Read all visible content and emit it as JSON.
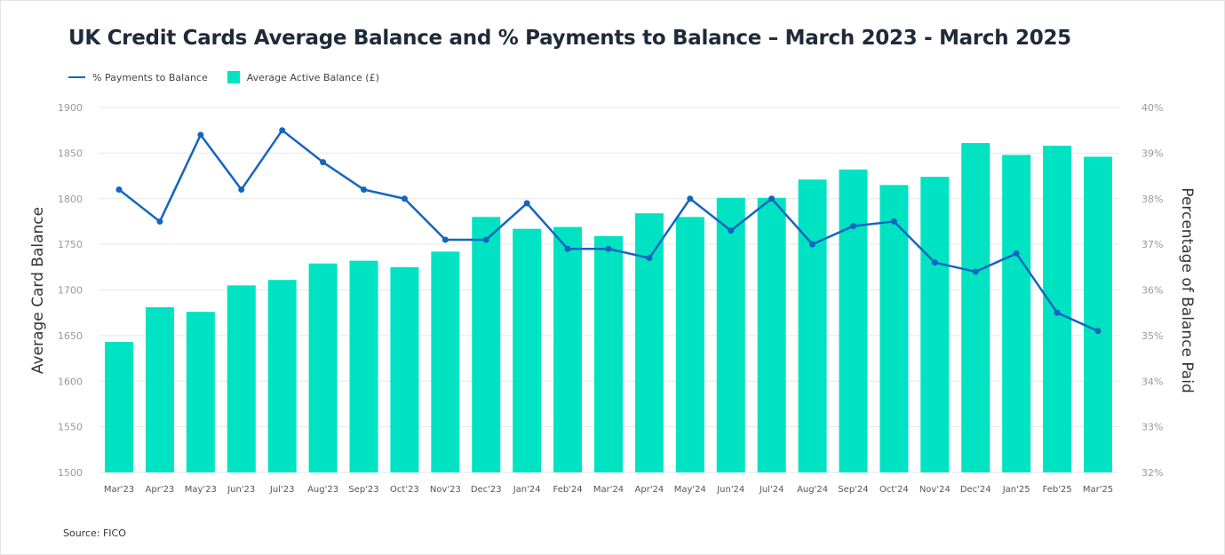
{
  "chart_data": {
    "type": "bar+line",
    "title": "UK Credit Cards Average Balance and % Payments to Balance – March 2023 - March 2025",
    "categories": [
      "Mar'23",
      "Apr'23",
      "May'23",
      "Jun'23",
      "Jul'23",
      "Aug'23",
      "Sep'23",
      "Oct'23",
      "Nov'23",
      "Dec'23",
      "Jan'24",
      "Feb'24",
      "Mar'24",
      "Apr'24",
      "May'24",
      "Jun'24",
      "Jul'24",
      "Aug'24",
      "Sep'24",
      "Oct'24",
      "Nov'24",
      "Dec'24",
      "Jan'25",
      "Feb'25",
      "Mar'25"
    ],
    "series": [
      {
        "name": "% Payments to Balance",
        "type": "line",
        "axis": "right",
        "color": "#1565c0",
        "values": [
          38.2,
          37.5,
          39.4,
          38.2,
          39.5,
          38.8,
          38.2,
          38.0,
          37.1,
          37.1,
          37.9,
          36.9,
          36.9,
          36.7,
          38.0,
          37.3,
          38.0,
          37.0,
          37.4,
          37.5,
          36.6,
          36.4,
          36.8,
          35.5,
          35.1
        ]
      },
      {
        "name": "Average Active Balance (£)",
        "type": "bar",
        "axis": "left",
        "color": "#00e3c2",
        "values": [
          1643,
          1681,
          1676,
          1705,
          1711,
          1729,
          1732,
          1725,
          1742,
          1780,
          1767,
          1769,
          1759,
          1784,
          1780,
          1801,
          1801,
          1821,
          1832,
          1815,
          1824,
          1861,
          1848,
          1858,
          1846
        ]
      }
    ],
    "ylabel": "Average Card Balance",
    "y2label": "Percentage of Balance Paid",
    "ylim": [
      1500,
      1900
    ],
    "y2lim": [
      32,
      40
    ],
    "yticks": [
      "1500",
      "1550",
      "1600",
      "1650",
      "1700",
      "1750",
      "1800",
      "1850",
      "1900"
    ],
    "y2ticks": [
      "32%",
      "33%",
      "34%",
      "35%",
      "36%",
      "37%",
      "38%",
      "39%",
      "40%"
    ],
    "grid": true,
    "legend": "top-left"
  },
  "source": "Source: FICO"
}
